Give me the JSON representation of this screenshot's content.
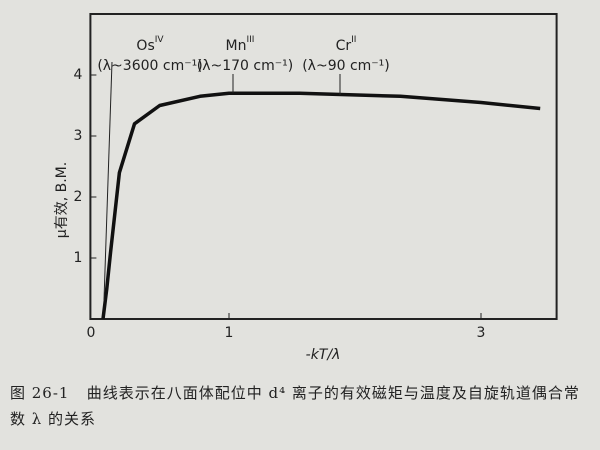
{
  "chart_data": {
    "type": "line",
    "x_label": "-kT/λ",
    "y_label": "μ有效, B.M.",
    "xlim": [
      -0.1,
      3.6
    ],
    "ylim": [
      0,
      5
    ],
    "xticks": [
      0,
      1,
      3
    ],
    "yticks": [
      1,
      2,
      3,
      4
    ],
    "series": [
      {
        "color": "#111111",
        "x": [
          0,
          0.03,
          0.06,
          0.13,
          0.25,
          0.45,
          0.77,
          1.0,
          1.56,
          2.36,
          3.0,
          3.47
        ],
        "values": [
          0,
          0.5,
          1.1,
          2.4,
          3.2,
          3.5,
          3.65,
          3.7,
          3.7,
          3.65,
          3.55,
          3.45
        ]
      }
    ],
    "annotations": [
      {
        "text": "Os",
        "sup": "IV",
        "note": "(λ~3600 cm⁻¹)"
      },
      {
        "text": "Mn",
        "sup": "III",
        "note": "(λ~170 cm⁻¹)"
      },
      {
        "text": "Cr",
        "sup": "II",
        "note": "(λ~90 cm⁻¹)"
      }
    ]
  },
  "caption": {
    "label": "图 26-1",
    "text": "曲线表示在八面体配位中 d⁴ 离子的有效磁矩与温度及自旋轨道偶合常数 λ 的关系"
  }
}
